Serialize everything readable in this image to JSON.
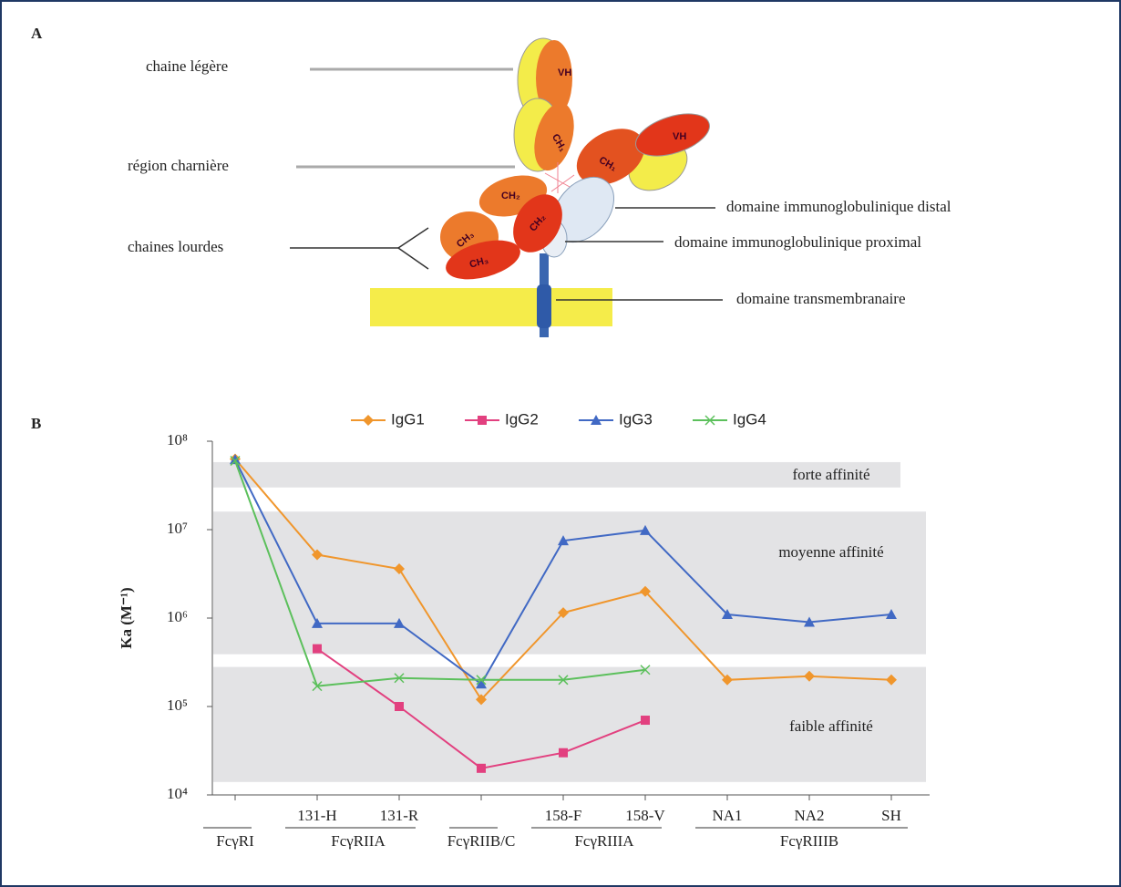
{
  "panel_a": {
    "label": "A",
    "annotations": [
      "chaine légère",
      "région charnière",
      "chaines lourdes",
      "domaine immunoglobulinique distal",
      "domaine immunoglobulinique proximal",
      "domaine transmembranaire"
    ],
    "domains": [
      "VH",
      "CH₁",
      "VH",
      "CH₁",
      "CH₂",
      "CH₂",
      "CH₃",
      "CH₃"
    ]
  },
  "chart_data": {
    "type": "line",
    "panel_label": "B",
    "y_label": "Ka (M⁻¹)",
    "categories": [
      null,
      "131-H",
      "131-R",
      null,
      "158-F",
      "158-V",
      "NA1",
      "NA2",
      "SH"
    ],
    "groups": [
      "FcγRI",
      "FcγRIIA",
      "FcγRIIB/C",
      "FcγRIIIA",
      "FcγRIIIB"
    ],
    "ylog": true,
    "ylim": [
      10000,
      100000000
    ],
    "yticks": [
      {
        "value": 10000,
        "label": "10⁴"
      },
      {
        "value": 100000,
        "label": "10⁵"
      },
      {
        "value": 1000000,
        "label": "10⁶"
      },
      {
        "value": 10000000,
        "label": "10⁷"
      },
      {
        "value": 100000000,
        "label": "10⁸"
      }
    ],
    "bands": [
      {
        "label": "forte affinité",
        "range": [
          30000000,
          58000000
        ]
      },
      {
        "label": "moyenne affinité",
        "range": [
          390000,
          16000000
        ]
      },
      {
        "label": "faible affinité",
        "range": [
          14000,
          280000
        ]
      }
    ],
    "series": [
      {
        "name": "IgG1",
        "color": "#f0962c",
        "marker": "diamond",
        "values": [
          63000000,
          5200000,
          3600000,
          120000,
          1150000,
          2000000,
          200000,
          220000,
          200000
        ]
      },
      {
        "name": "IgG2",
        "color": "#e2407f",
        "marker": "square",
        "values": [
          null,
          450000,
          100000,
          20000,
          30000,
          70000,
          null,
          null,
          null
        ]
      },
      {
        "name": "IgG3",
        "color": "#4169c4",
        "marker": "triangle",
        "values": [
          62000000,
          870000,
          870000,
          180000,
          7500000,
          9800000,
          1100000,
          900000,
          1100000
        ]
      },
      {
        "name": "IgG4",
        "color": "#5cc05c",
        "marker": "cross",
        "values": [
          60000000,
          170000,
          210000,
          200000,
          200000,
          260000,
          null,
          null,
          null
        ]
      }
    ]
  }
}
